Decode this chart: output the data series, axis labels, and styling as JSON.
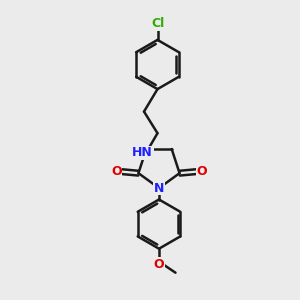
{
  "background_color": "#ebebeb",
  "bond_color": "#1a1a1a",
  "atom_colors": {
    "N": "#2020ff",
    "O": "#dd0000",
    "Cl": "#33aa00",
    "C": "#1a1a1a"
  },
  "bond_width": 1.8,
  "figsize": [
    3.0,
    3.0
  ],
  "dpi": 100,
  "xlim": [
    0,
    10
  ],
  "ylim": [
    0,
    10
  ]
}
